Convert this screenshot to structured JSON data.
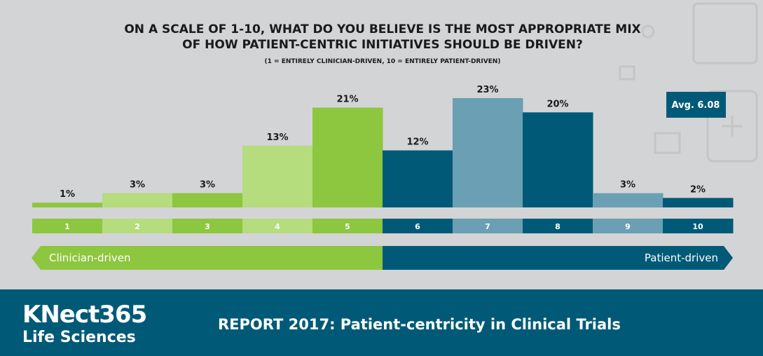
{
  "chart_data": {
    "type": "bar",
    "title": "ON A SCALE OF 1-10, WHAT DO YOU BELIEVE IS THE MOST APPROPRIATE MIX",
    "title_line2": "OF HOW PATIENT-CENTRIC INITIATIVES SHOULD BE DRIVEN?",
    "subtitle": "(1 = ENTIRELY CLINICIAN-DRIVEN, 10 = ENTIRELY PATIENT-DRIVEN)",
    "categories": [
      "1",
      "2",
      "3",
      "4",
      "5",
      "6",
      "7",
      "8",
      "9",
      "10"
    ],
    "values": [
      1,
      3,
      3,
      13,
      21,
      12,
      23,
      20,
      3,
      2
    ],
    "value_labels": [
      "1%",
      "3%",
      "3%",
      "13%",
      "21%",
      "12%",
      "23%",
      "20%",
      "3%",
      "2%"
    ],
    "bar_colors": [
      "#8dc63f",
      "#b5dc7d",
      "#8dc63f",
      "#b5dc7d",
      "#8dc63f",
      "#005a77",
      "#6a9fb4",
      "#005a77",
      "#6a9fb4",
      "#005a77"
    ],
    "ylim": [
      0,
      23
    ],
    "left_label": "Clinician-driven",
    "right_label": "Patient-driven",
    "average_label": "Avg. 6.08"
  },
  "colors": {
    "green": "#8dc63f",
    "light_green": "#b5dc7d",
    "teal": "#005a77",
    "light_teal": "#6a9fb4",
    "background": "#d3d4d6"
  },
  "footer": {
    "brand_line1": "KNect365",
    "brand_line2": "Life Sciences",
    "report_title": "REPORT 2017: Patient-centricity in Clinical Trials"
  }
}
